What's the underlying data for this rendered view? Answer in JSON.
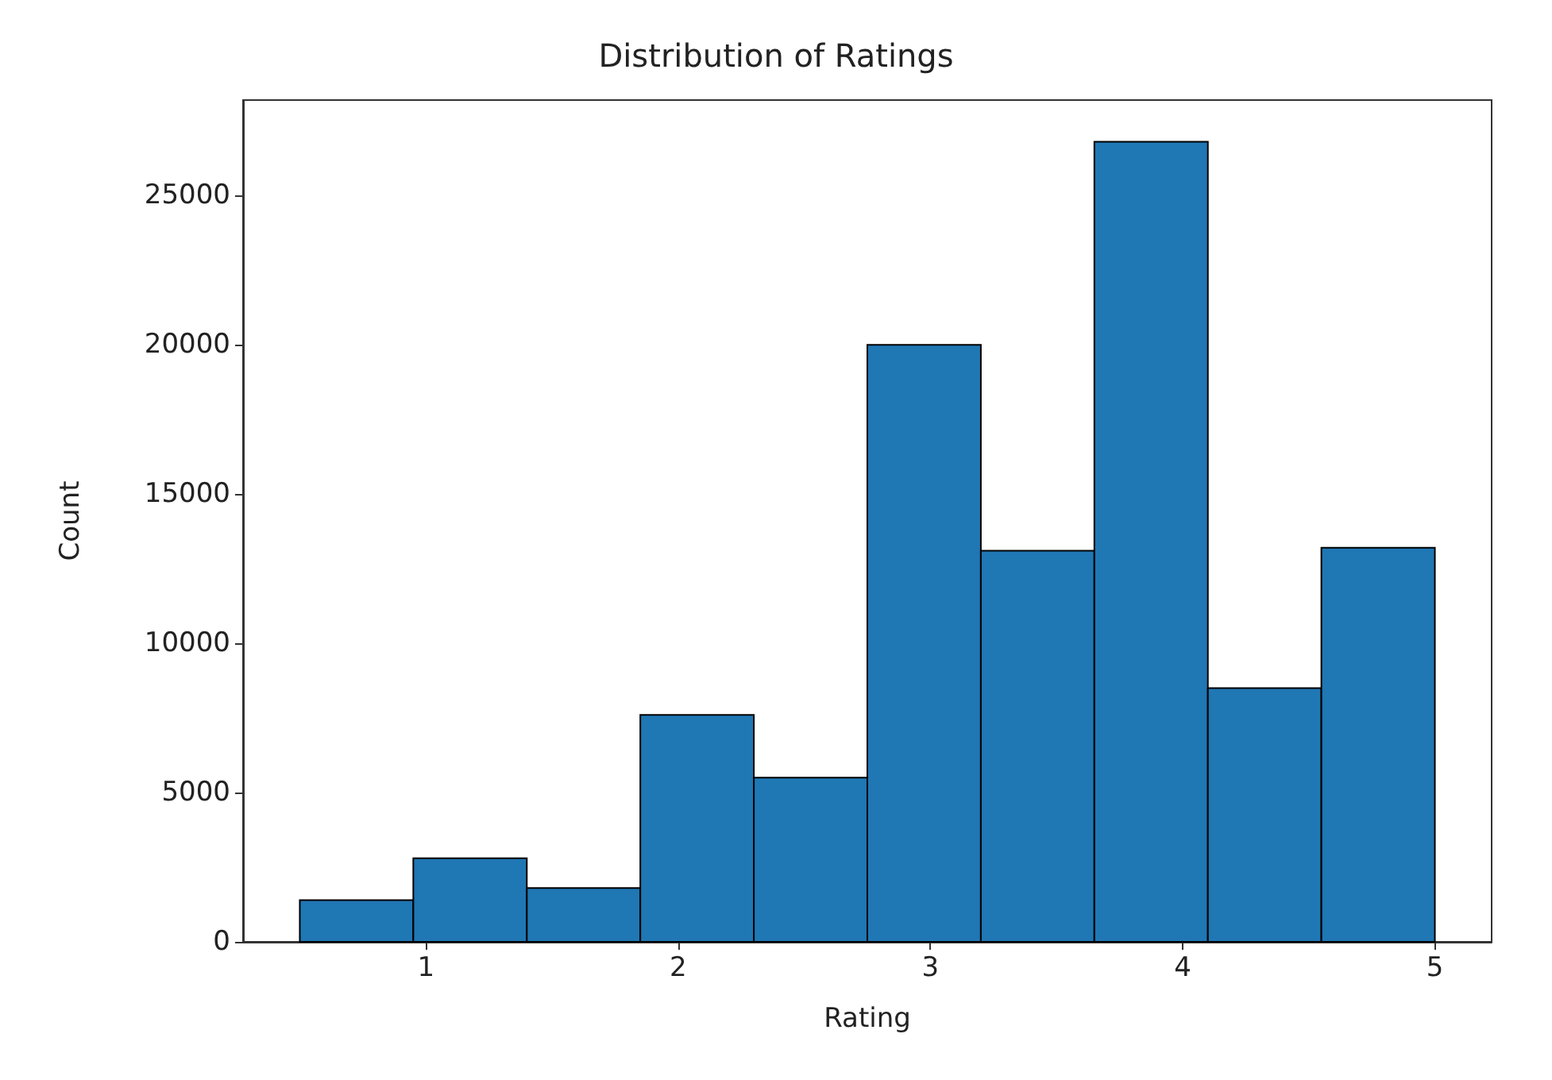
{
  "chart_data": {
    "type": "histogram",
    "title": "Distribution of Ratings",
    "xlabel": "Rating",
    "ylabel": "Count",
    "bins": [
      0.5,
      0.95,
      1.4,
      1.85,
      2.3,
      2.75,
      3.2,
      3.65,
      4.1,
      4.55,
      5.0
    ],
    "values": [
      1400,
      2800,
      1800,
      7600,
      5500,
      20000,
      13100,
      26800,
      8500,
      13200
    ],
    "color": "#1f77b4",
    "xlim": [
      0.275,
      5.225
    ],
    "xticks": [
      1,
      2,
      3,
      4,
      5
    ],
    "ylim": [
      0,
      28200
    ],
    "yticks": [
      0,
      5000,
      10000,
      15000,
      20000,
      25000
    ],
    "grid": false
  }
}
